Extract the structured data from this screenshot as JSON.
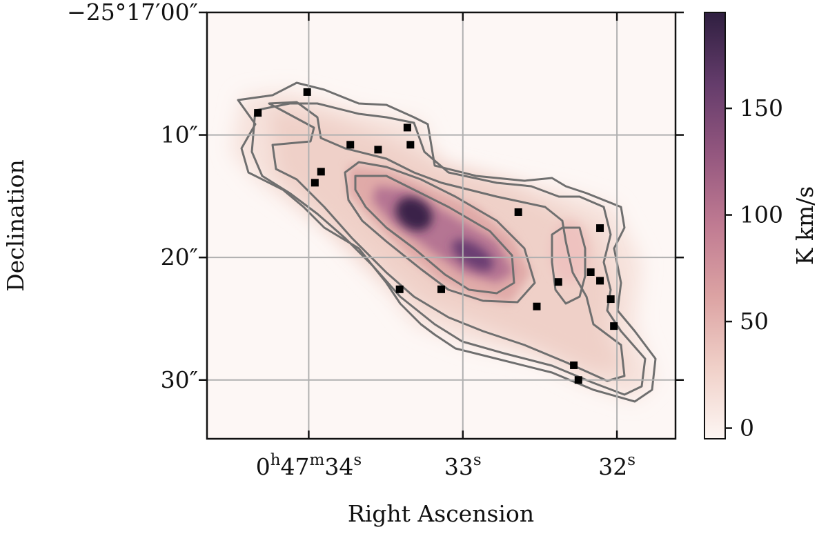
{
  "chart_data": {
    "type": "heatmap",
    "xlabel": "Right Ascension",
    "ylabel": "Declination",
    "colorbar_label": "K km/s",
    "x_ticks": [
      {
        "value": 34,
        "label_main": "0",
        "sup1": "h",
        "mid": "47",
        "sup2": "m",
        "tail": "34",
        "sup3": "s"
      },
      {
        "value": 33,
        "label_main": "33",
        "sup": "s"
      },
      {
        "value": 32,
        "label_main": "32",
        "sup": "s"
      }
    ],
    "y_ticks": [
      {
        "value": 0,
        "label": "−25°17′00″"
      },
      {
        "value": 10,
        "label": "10″"
      },
      {
        "value": 20,
        "label": "20″"
      },
      {
        "value": 30,
        "label": "30″"
      }
    ],
    "x_range": [
      34.66,
      31.62
    ],
    "y_range": [
      0,
      34.8
    ],
    "colorbar": {
      "range": [
        -5,
        195
      ],
      "ticks": [
        {
          "value": 0,
          "label": "0"
        },
        {
          "value": 50,
          "label": "50"
        },
        {
          "value": 100,
          "label": "100"
        },
        {
          "value": 150,
          "label": "150"
        }
      ],
      "colors": [
        "#fdf6f3",
        "#f0d0c8",
        "#dca3a3",
        "#c07b92",
        "#94577f",
        "#643c6b",
        "#2f1f40"
      ]
    },
    "grid": true,
    "emission_peak_K_km_s": 190,
    "contour_levels_K_km_s": [
      5,
      15,
      30,
      60,
      100
    ],
    "markers": [
      {
        "ra": 34.33,
        "dec": 8.2
      },
      {
        "ra": 34.01,
        "dec": 6.5
      },
      {
        "ra": 33.73,
        "dec": 10.8
      },
      {
        "ra": 33.55,
        "dec": 11.2
      },
      {
        "ra": 33.36,
        "dec": 9.4
      },
      {
        "ra": 33.34,
        "dec": 10.8
      },
      {
        "ra": 33.92,
        "dec": 13.0
      },
      {
        "ra": 33.96,
        "dec": 13.9
      },
      {
        "ra": 32.64,
        "dec": 16.3
      },
      {
        "ra": 32.11,
        "dec": 17.6
      },
      {
        "ra": 32.17,
        "dec": 21.2
      },
      {
        "ra": 32.11,
        "dec": 21.9
      },
      {
        "ra": 32.38,
        "dec": 22.0
      },
      {
        "ra": 32.04,
        "dec": 23.4
      },
      {
        "ra": 32.52,
        "dec": 24.0
      },
      {
        "ra": 32.02,
        "dec": 25.6
      },
      {
        "ra": 33.41,
        "dec": 22.6
      },
      {
        "ra": 33.14,
        "dec": 22.6
      },
      {
        "ra": 32.28,
        "dec": 28.8
      },
      {
        "ra": 32.25,
        "dec": 30.0
      }
    ]
  }
}
